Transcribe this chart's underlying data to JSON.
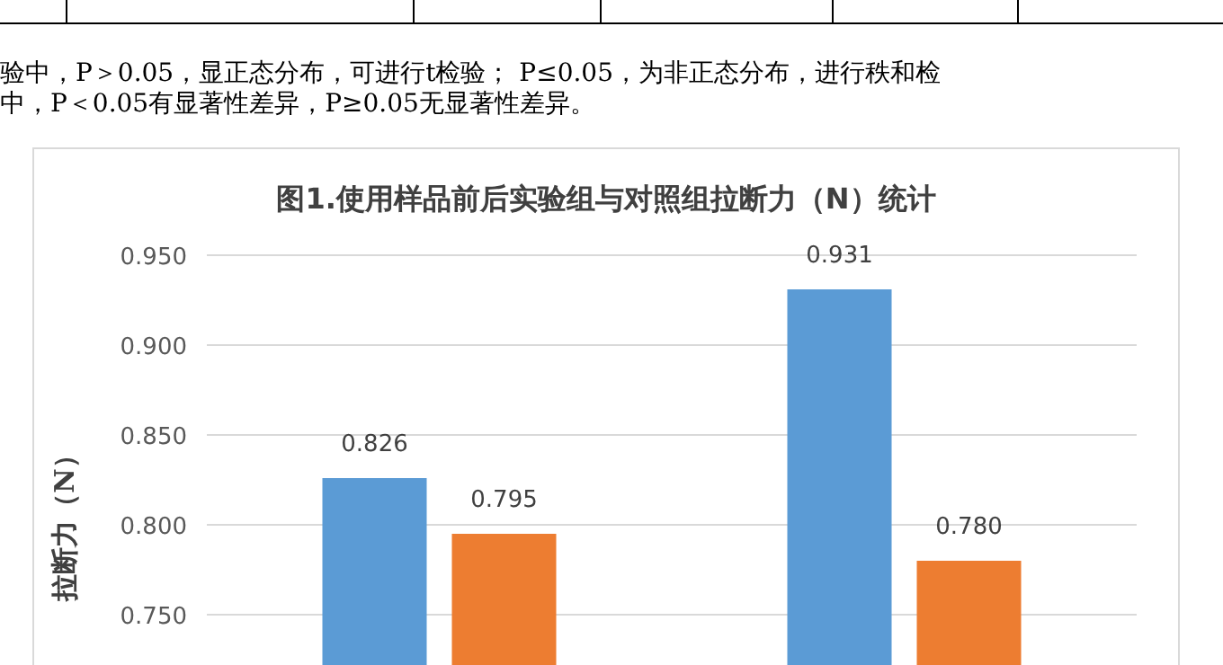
{
  "chart_data": {
    "type": "bar",
    "title": "图1.使用样品前后实验组与对照组拉断力（N）统计",
    "ylabel": "拉断力（N）",
    "annotations": [
      "验中，P＞0.05，显正态分布，可进行t检验； P≤0.05，为非正态分布，进行秩和检",
      "中，P＜0.05有显著性差异，P≥0.05无显著性差异。"
    ],
    "categories": [
      null,
      null
    ],
    "series": [
      {
        "color": "#5b9bd5",
        "values": [
          0.826,
          0.931
        ],
        "value_labels": [
          "0.826",
          "0.931"
        ]
      },
      {
        "color": "#ed7d31",
        "values": [
          0.795,
          0.78
        ],
        "value_labels": [
          "0.795",
          "0.780"
        ]
      }
    ],
    "ylim": [
      0.722,
      0.95
    ],
    "yticks": [
      {
        "value": 0.75,
        "label": "0.750"
      },
      {
        "value": 0.8,
        "label": "0.800"
      },
      {
        "value": 0.85,
        "label": "0.850"
      },
      {
        "value": 0.9,
        "label": "0.900"
      },
      {
        "value": 0.95,
        "label": "0.950"
      }
    ],
    "grid": "y"
  }
}
